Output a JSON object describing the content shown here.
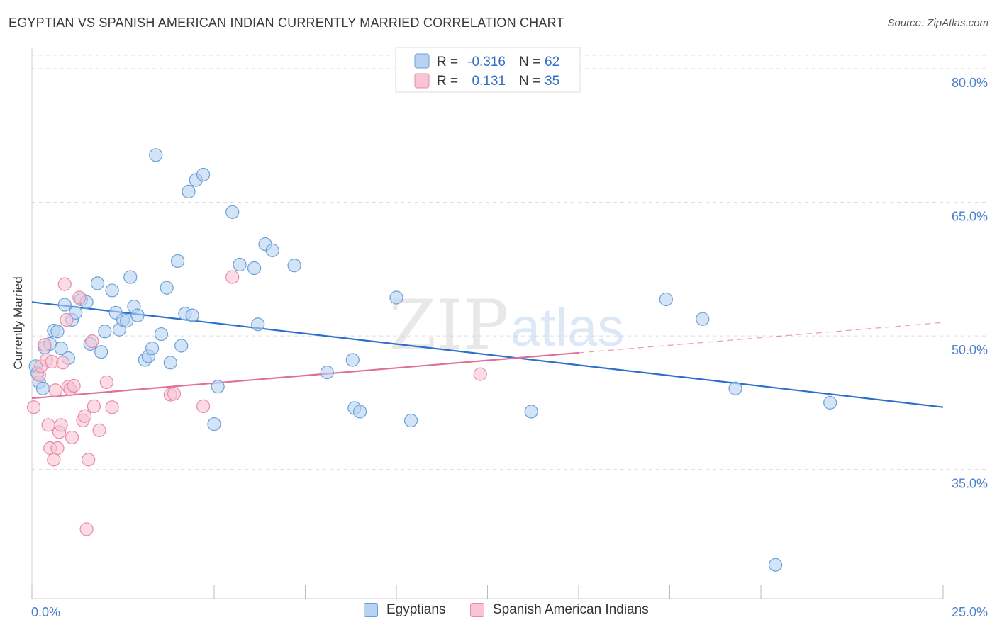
{
  "title": "EGYPTIAN VS SPANISH AMERICAN INDIAN CURRENTLY MARRIED CORRELATION CHART",
  "source": "Source: ZipAtlas.com",
  "watermark": {
    "zip": "ZIP",
    "atlas": "atlas"
  },
  "legend_top": {
    "rows": [
      {
        "r_label": "R =",
        "r_value": "-0.316",
        "n_label": "N =",
        "n_value": "62"
      },
      {
        "r_label": "R =",
        "r_value": "0.131",
        "n_label": "N =",
        "n_value": "35"
      }
    ]
  },
  "legend_bottom": {
    "series1": "Egyptians",
    "series2": "Spanish American Indians"
  },
  "colors": {
    "blue_fill": "#b8d2f2",
    "blue_stroke": "#6a9fdc",
    "blue_line": "#2c6fcf",
    "pink_fill": "#f9c4d4",
    "pink_stroke": "#e88aa8",
    "pink_line": "#e06f98",
    "tick_text": "#4a80cc",
    "grid": "#dddddd"
  },
  "chart_data": {
    "type": "scatter",
    "title": "EGYPTIAN VS SPANISH AMERICAN INDIAN CURRENTLY MARRIED CORRELATION CHART",
    "xlabel": "",
    "ylabel": "Currently Married",
    "xlim": [
      0,
      25
    ],
    "ylim": [
      20.5,
      81.5
    ],
    "x_tick_labels": [
      "0.0%",
      "25.0%"
    ],
    "y_ticks": [
      35,
      50,
      65,
      80
    ],
    "y_tick_labels": [
      "35.0%",
      "50.0%",
      "65.0%",
      "80.0%"
    ],
    "grid": true,
    "series": [
      {
        "name": "Egyptians",
        "r": -0.316,
        "n": 62,
        "trend": {
          "x": [
            0,
            25
          ],
          "y": [
            53.8,
            42.0
          ],
          "dashed_from": null
        },
        "points": [
          [
            0.1,
            46.6
          ],
          [
            0.15,
            45.8
          ],
          [
            0.2,
            44.8
          ],
          [
            0.3,
            44.1
          ],
          [
            0.35,
            48.7
          ],
          [
            0.5,
            49.1
          ],
          [
            0.6,
            50.6
          ],
          [
            0.7,
            50.5
          ],
          [
            0.8,
            48.6
          ],
          [
            0.9,
            53.5
          ],
          [
            1.0,
            47.5
          ],
          [
            1.1,
            51.8
          ],
          [
            1.2,
            52.6
          ],
          [
            1.35,
            54.1
          ],
          [
            1.5,
            53.8
          ],
          [
            1.6,
            49.1
          ],
          [
            1.8,
            55.9
          ],
          [
            1.9,
            48.2
          ],
          [
            2.0,
            50.5
          ],
          [
            2.2,
            55.1
          ],
          [
            2.3,
            52.6
          ],
          [
            2.4,
            50.7
          ],
          [
            2.5,
            51.8
          ],
          [
            2.6,
            51.7
          ],
          [
            2.7,
            56.6
          ],
          [
            2.8,
            53.3
          ],
          [
            2.9,
            52.3
          ],
          [
            3.1,
            47.3
          ],
          [
            3.2,
            47.7
          ],
          [
            3.3,
            48.6
          ],
          [
            3.4,
            70.3
          ],
          [
            3.55,
            50.2
          ],
          [
            3.7,
            55.4
          ],
          [
            3.8,
            47.0
          ],
          [
            4.0,
            58.4
          ],
          [
            4.1,
            48.9
          ],
          [
            4.2,
            52.5
          ],
          [
            4.3,
            66.2
          ],
          [
            4.4,
            52.3
          ],
          [
            4.5,
            67.5
          ],
          [
            4.7,
            68.1
          ],
          [
            5.0,
            40.1
          ],
          [
            5.1,
            44.3
          ],
          [
            5.5,
            63.9
          ],
          [
            5.7,
            58.0
          ],
          [
            6.1,
            57.6
          ],
          [
            6.2,
            51.3
          ],
          [
            6.4,
            60.3
          ],
          [
            6.6,
            59.6
          ],
          [
            7.2,
            57.9
          ],
          [
            8.1,
            45.9
          ],
          [
            8.8,
            47.3
          ],
          [
            8.85,
            41.9
          ],
          [
            9.0,
            41.5
          ],
          [
            10.0,
            54.3
          ],
          [
            10.4,
            40.5
          ],
          [
            13.7,
            41.5
          ],
          [
            17.4,
            54.1
          ],
          [
            18.4,
            51.9
          ],
          [
            19.3,
            44.1
          ],
          [
            20.4,
            24.3
          ],
          [
            21.9,
            42.5
          ]
        ]
      },
      {
        "name": "Spanish American Indians",
        "r": 0.131,
        "n": 35,
        "trend": {
          "x": [
            0,
            25
          ],
          "y": [
            43.0,
            51.5
          ],
          "dashed_from": 15.0
        },
        "points": [
          [
            0.05,
            42.0
          ],
          [
            0.2,
            45.6
          ],
          [
            0.25,
            46.6
          ],
          [
            0.35,
            49.0
          ],
          [
            0.4,
            47.3
          ],
          [
            0.45,
            40.0
          ],
          [
            0.5,
            37.4
          ],
          [
            0.55,
            47.1
          ],
          [
            0.6,
            36.1
          ],
          [
            0.65,
            43.9
          ],
          [
            0.7,
            37.4
          ],
          [
            0.75,
            39.2
          ],
          [
            0.8,
            40.0
          ],
          [
            0.85,
            47.0
          ],
          [
            0.9,
            55.8
          ],
          [
            0.95,
            51.8
          ],
          [
            1.0,
            44.3
          ],
          [
            1.05,
            44.0
          ],
          [
            1.1,
            38.6
          ],
          [
            1.15,
            44.4
          ],
          [
            1.3,
            54.3
          ],
          [
            1.4,
            40.5
          ],
          [
            1.45,
            41.0
          ],
          [
            1.5,
            28.3
          ],
          [
            1.55,
            36.1
          ],
          [
            1.65,
            49.4
          ],
          [
            1.7,
            42.1
          ],
          [
            1.85,
            39.4
          ],
          [
            2.05,
            44.8
          ],
          [
            2.2,
            42.0
          ],
          [
            3.8,
            43.4
          ],
          [
            3.9,
            43.5
          ],
          [
            4.7,
            42.1
          ],
          [
            5.5,
            56.6
          ],
          [
            12.3,
            45.7
          ]
        ]
      }
    ]
  }
}
